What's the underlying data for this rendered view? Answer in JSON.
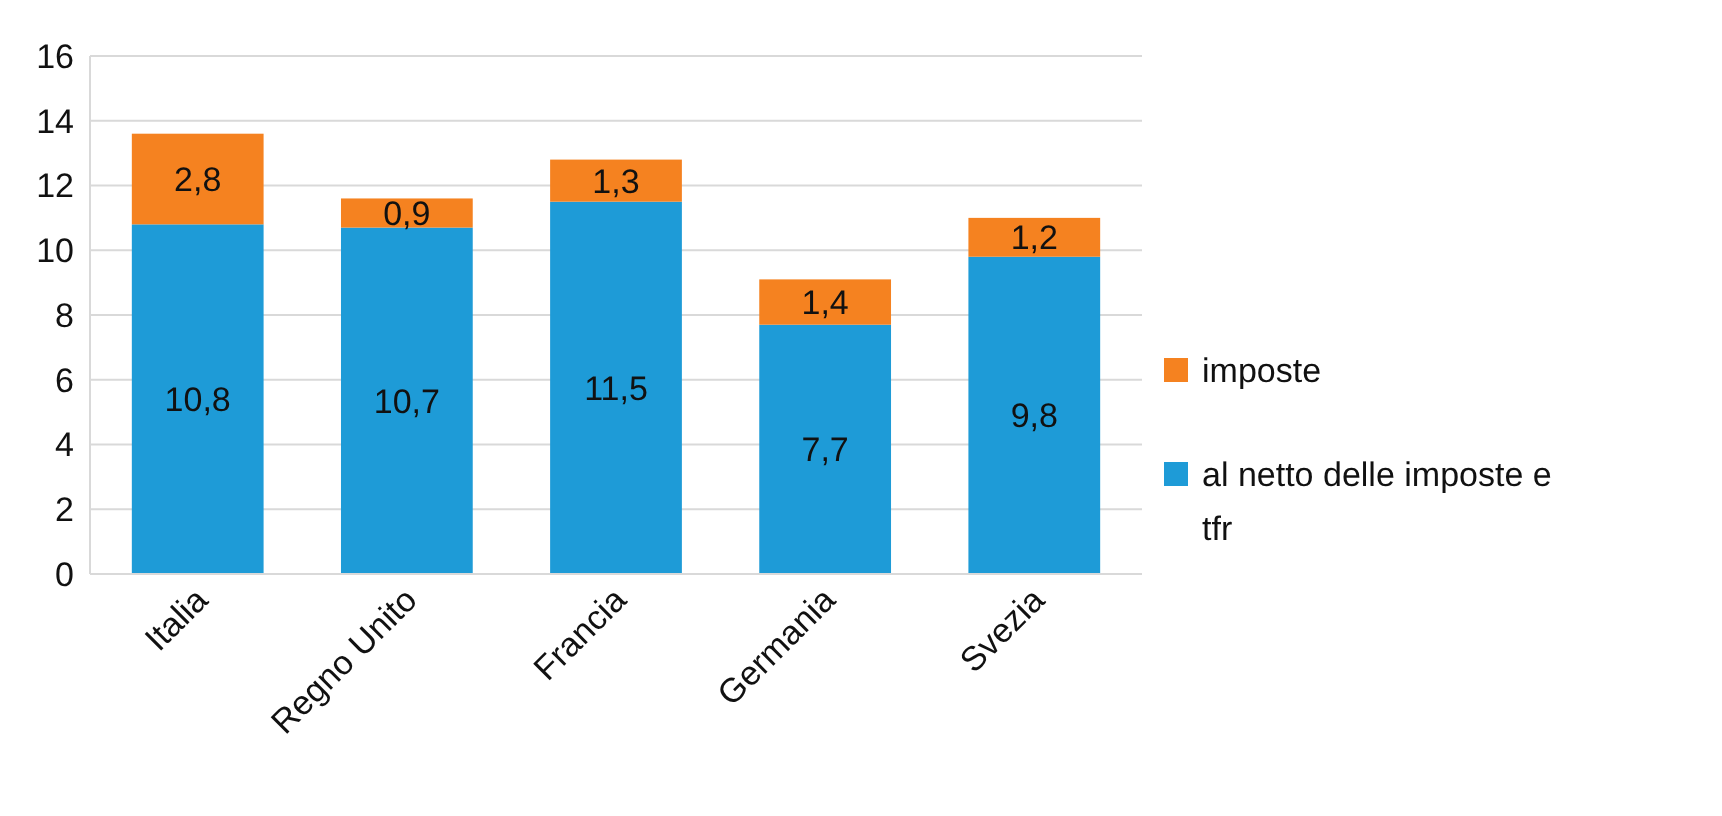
{
  "chart_data": {
    "type": "bar",
    "stacked": true,
    "categories": [
      "Italia",
      "Regno Unito",
      "Francia",
      "Germania",
      "Svezia"
    ],
    "series": [
      {
        "name": "al netto delle imposte e tfr",
        "color": "#1e9bd7",
        "values": [
          10.8,
          10.7,
          11.5,
          7.7,
          9.8
        ],
        "value_labels": [
          "10,8",
          "10,7",
          "11,5",
          "7,7",
          "9,8"
        ]
      },
      {
        "name": "imposte",
        "color": "#f58220",
        "values": [
          2.8,
          0.9,
          1.3,
          1.4,
          1.2
        ],
        "value_labels": [
          "2,8",
          "0,9",
          "1,3",
          "1,4",
          "1,2"
        ]
      }
    ],
    "ylim": [
      0,
      16
    ],
    "yticks": [
      0,
      2,
      4,
      6,
      8,
      10,
      12,
      14,
      16
    ],
    "grid": "y",
    "legend": "right"
  }
}
